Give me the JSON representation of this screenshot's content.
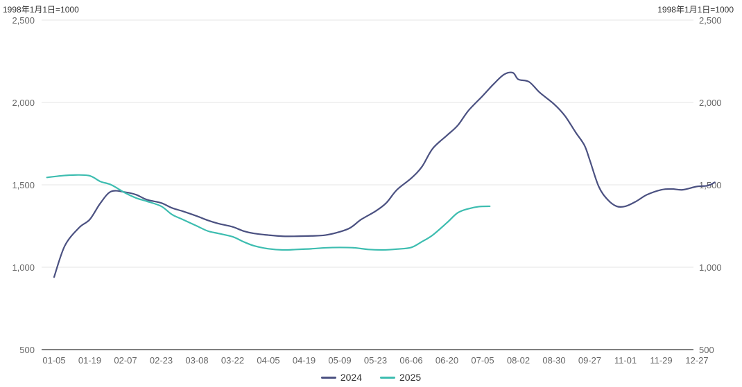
{
  "unit_left": "1998年1月1日=1000",
  "unit_right": "1998年1月1日=1000",
  "legend": [
    {
      "name": "2024",
      "color": "#4b5181"
    },
    {
      "name": "2025",
      "color": "#3dbdb0"
    }
  ],
  "chart_data": {
    "type": "line",
    "title": "",
    "xlabel": "",
    "ylabel": "1998年1月1日=1000",
    "ylim": [
      500,
      2500
    ],
    "yticks": [
      500,
      1000,
      1500,
      2000,
      2500
    ],
    "ytick_labels": [
      "500",
      "1,000",
      "1,500",
      "2,000",
      "2,500"
    ],
    "grid": true,
    "legend_position": "bottom",
    "x_tick_labels": [
      "01-05",
      "01-19",
      "02-07",
      "02-23",
      "03-08",
      "03-22",
      "04-05",
      "04-19",
      "05-09",
      "05-23",
      "06-06",
      "06-20",
      "07-05",
      "08-02",
      "08-30",
      "09-27",
      "11-01",
      "11-29",
      "12-27"
    ],
    "series": [
      {
        "name": "2024",
        "color": "#4b5181",
        "points": [
          [
            0,
            940
          ],
          [
            0.3,
            1130
          ],
          [
            0.7,
            1240
          ],
          [
            1.0,
            1290
          ],
          [
            1.3,
            1390
          ],
          [
            1.6,
            1460
          ],
          [
            2.0,
            1455
          ],
          [
            2.3,
            1440
          ],
          [
            2.6,
            1410
          ],
          [
            3.0,
            1390
          ],
          [
            3.3,
            1360
          ],
          [
            3.6,
            1340
          ],
          [
            4.0,
            1310
          ],
          [
            4.3,
            1285
          ],
          [
            4.6,
            1265
          ],
          [
            5.0,
            1245
          ],
          [
            5.3,
            1220
          ],
          [
            5.6,
            1205
          ],
          [
            6.0,
            1195
          ],
          [
            6.4,
            1188
          ],
          [
            6.8,
            1188
          ],
          [
            7.2,
            1190
          ],
          [
            7.6,
            1195
          ],
          [
            8.0,
            1215
          ],
          [
            8.3,
            1240
          ],
          [
            8.6,
            1290
          ],
          [
            9.0,
            1340
          ],
          [
            9.3,
            1390
          ],
          [
            9.6,
            1470
          ],
          [
            10.0,
            1540
          ],
          [
            10.3,
            1610
          ],
          [
            10.6,
            1720
          ],
          [
            11.0,
            1800
          ],
          [
            11.3,
            1860
          ],
          [
            11.6,
            1950
          ],
          [
            12.0,
            2040
          ],
          [
            12.3,
            2110
          ],
          [
            12.6,
            2170
          ],
          [
            12.85,
            2180
          ],
          [
            13.0,
            2140
          ],
          [
            13.3,
            2125
          ],
          [
            13.6,
            2060
          ],
          [
            14.0,
            1990
          ],
          [
            14.3,
            1920
          ],
          [
            14.6,
            1820
          ],
          [
            14.85,
            1740
          ],
          [
            15.0,
            1650
          ],
          [
            15.25,
            1490
          ],
          [
            15.5,
            1410
          ],
          [
            15.75,
            1370
          ],
          [
            16.0,
            1370
          ],
          [
            16.3,
            1400
          ],
          [
            16.6,
            1440
          ],
          [
            17.0,
            1470
          ],
          [
            17.3,
            1475
          ],
          [
            17.6,
            1470
          ],
          [
            18.0,
            1490
          ],
          [
            18.3,
            1495
          ],
          [
            18.5,
            1515
          ]
        ]
      },
      {
        "name": "2025",
        "color": "#3dbdb0",
        "points": [
          [
            -0.2,
            1545
          ],
          [
            0.2,
            1555
          ],
          [
            0.6,
            1560
          ],
          [
            1.0,
            1555
          ],
          [
            1.3,
            1520
          ],
          [
            1.6,
            1500
          ],
          [
            2.0,
            1450
          ],
          [
            2.3,
            1420
          ],
          [
            2.6,
            1400
          ],
          [
            3.0,
            1370
          ],
          [
            3.3,
            1320
          ],
          [
            3.6,
            1290
          ],
          [
            4.0,
            1250
          ],
          [
            4.3,
            1220
          ],
          [
            4.6,
            1205
          ],
          [
            5.0,
            1185
          ],
          [
            5.3,
            1155
          ],
          [
            5.6,
            1130
          ],
          [
            6.0,
            1112
          ],
          [
            6.4,
            1105
          ],
          [
            6.8,
            1108
          ],
          [
            7.2,
            1112
          ],
          [
            7.6,
            1118
          ],
          [
            8.0,
            1120
          ],
          [
            8.4,
            1118
          ],
          [
            8.8,
            1108
          ],
          [
            9.2,
            1105
          ],
          [
            9.6,
            1110
          ],
          [
            10.0,
            1120
          ],
          [
            10.3,
            1155
          ],
          [
            10.6,
            1195
          ],
          [
            11.0,
            1270
          ],
          [
            11.3,
            1330
          ],
          [
            11.6,
            1355
          ],
          [
            11.9,
            1368
          ],
          [
            12.2,
            1370
          ]
        ]
      }
    ]
  }
}
